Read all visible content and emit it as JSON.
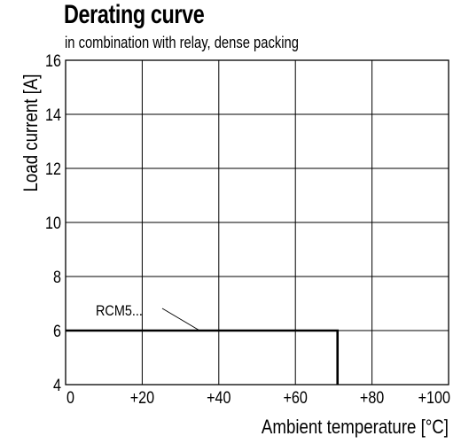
{
  "chart_data": {
    "type": "line",
    "title": "Derating curve",
    "subtitle": "in combination with relay, dense packing",
    "xlabel": "Ambient temperature [°C]",
    "ylabel": "Load current [A]",
    "xlim": [
      0,
      100
    ],
    "ylim": [
      4,
      16
    ],
    "x_ticks": [
      0,
      20,
      40,
      60,
      80,
      100
    ],
    "x_tick_labels": [
      "0",
      "+20",
      "+40",
      "+60",
      "+80",
      "+100"
    ],
    "y_ticks": [
      4,
      6,
      8,
      10,
      12,
      14,
      16
    ],
    "y_tick_labels": [
      "4",
      "6",
      "8",
      "10",
      "12",
      "14",
      "16"
    ],
    "grid": true,
    "series": [
      {
        "name": "RCM5...",
        "x": [
          0,
          71,
          71
        ],
        "y": [
          6,
          6,
          4
        ]
      }
    ],
    "annotations": [
      {
        "text": "RCM5...",
        "points_to": {
          "x": 35,
          "y": 6
        }
      }
    ]
  }
}
